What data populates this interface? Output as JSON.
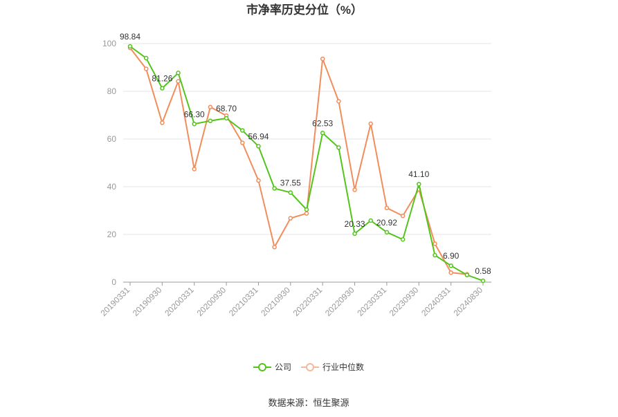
{
  "chart_data": {
    "type": "line",
    "title": "市净率历史分位（%）",
    "xlabel": "",
    "ylabel": "",
    "ylim": [
      0,
      100
    ],
    "yticks": [
      0,
      20,
      40,
      60,
      80,
      100
    ],
    "grid": true,
    "legend_position": "bottom",
    "x": [
      "20190331",
      "20190630",
      "20190930",
      "20191231",
      "20200331",
      "20200630",
      "20200930",
      "20201231",
      "20210331",
      "20210630",
      "20210930",
      "20211231",
      "20220331",
      "20220630",
      "20220930",
      "20221231",
      "20230331",
      "20230630",
      "20230930",
      "20231231",
      "20240331",
      "20240630",
      "20240830"
    ],
    "xtick_labels": [
      "20190331",
      "20190930",
      "20200331",
      "20200930",
      "20210331",
      "20210930",
      "20220331",
      "20220930",
      "20230331",
      "20230930",
      "20240331",
      "20240830"
    ],
    "series": [
      {
        "name": "公司",
        "color": "#52c41a",
        "values": [
          98.84,
          93.9,
          81.26,
          87.7,
          66.3,
          67.6,
          68.7,
          63.6,
          56.94,
          39.3,
          37.55,
          30.4,
          62.53,
          56.4,
          20.33,
          25.8,
          20.92,
          17.9,
          41.1,
          11.3,
          6.9,
          3.0,
          0.58
        ],
        "labels": {
          "0": "98.84",
          "2": "81.26",
          "4": "66.30",
          "6": "68.70",
          "8": "56.94",
          "10": "37.55",
          "12": "62.53",
          "14": "20.33",
          "16": "20.92",
          "18": "41.10",
          "20": "6.90",
          "22": "0.58"
        }
      },
      {
        "name": "行业中位数",
        "color": "#f28c5a",
        "values": [
          98.2,
          89.4,
          66.8,
          84.2,
          47.4,
          73.4,
          69.8,
          58.4,
          42.6,
          14.7,
          26.8,
          28.8,
          93.6,
          75.8,
          38.7,
          66.4,
          31.1,
          27.8,
          38.9,
          16.1,
          4.0,
          3.3,
          null
        ]
      }
    ]
  },
  "legend": [
    {
      "label": "公司",
      "color": "#52c41a"
    },
    {
      "label": "行业中位数",
      "color": "#f4b89a"
    }
  ],
  "source": "数据来源：恒生聚源"
}
